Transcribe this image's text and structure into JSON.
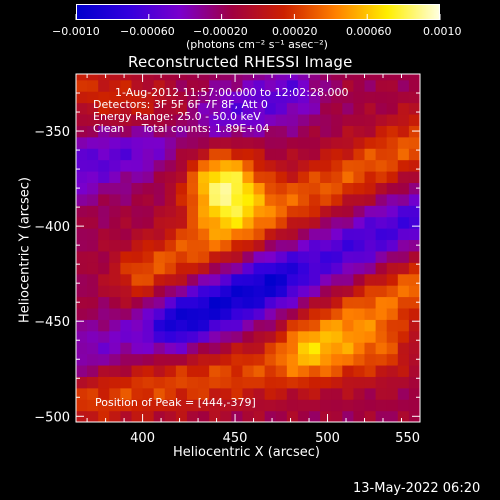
{
  "colorbar": {
    "ticks": [
      "−0.0010",
      "−0.00060",
      "−0.00020",
      "0.00020",
      "0.00060",
      "0.0010"
    ],
    "unit_label": "(photons cm⁻² s⁻¹ asec⁻²)",
    "colors": [
      "#0000cc",
      "#3300dd",
      "#7a00cc",
      "#a00040",
      "#cc2000",
      "#ff8000",
      "#ffee00",
      "#ffffdd"
    ]
  },
  "chart_data": {
    "type": "heatmap",
    "title": "Reconstructed RHESSI Image",
    "xlabel": "Heliocentric X (arcsec)",
    "ylabel": "Heliocentric Y (arcsec)",
    "xlim": [
      364,
      550
    ],
    "ylim": [
      -503,
      -320
    ],
    "xticks": [
      400,
      450,
      500,
      550
    ],
    "yticks": [
      -350,
      -400,
      -450,
      -500
    ],
    "colorbar_range": [
      -0.001,
      0.001
    ],
    "peak": [
      444,
      -379
    ],
    "features": [
      {
        "kind": "ridge",
        "from": [
          400,
          -425
        ],
        "to": [
          550,
          -355
        ],
        "level": 0.00045
      },
      {
        "kind": "hotspot",
        "center": [
          444,
          -379
        ],
        "level": 0.001
      },
      {
        "kind": "ridge",
        "from": [
          490,
          -460
        ],
        "to": [
          550,
          -430
        ],
        "level": 0.0005
      },
      {
        "kind": "ridge",
        "from": [
          370,
          -490
        ],
        "to": [
          530,
          -465
        ],
        "level": 0.0004
      },
      {
        "kind": "ridge",
        "from": [
          364,
          -325
        ],
        "to": [
          420,
          -345
        ],
        "level": 0.0003
      },
      {
        "kind": "trough",
        "from": [
          364,
          -370
        ],
        "to": [
          480,
          -330
        ],
        "level": -0.0004
      },
      {
        "kind": "trough",
        "from": [
          420,
          -450
        ],
        "to": [
          550,
          -395
        ],
        "level": -0.0005
      },
      {
        "kind": "trough",
        "from": [
          364,
          -470
        ],
        "to": [
          470,
          -430
        ],
        "level": -0.0003
      }
    ]
  },
  "info": {
    "time": "1-Aug-2012 11:57:00.000 to 12:02:28.000",
    "detectors": "Detectors: 3F 5F 6F 7F 8F, Att 0",
    "energy": "Energy Range: 25.0 - 50.0 keV",
    "clean": "Clean     Total counts: 1.89E+04",
    "peak": "Position of Peak = [444,-379]"
  },
  "footer": "13-May-2022 06:20"
}
